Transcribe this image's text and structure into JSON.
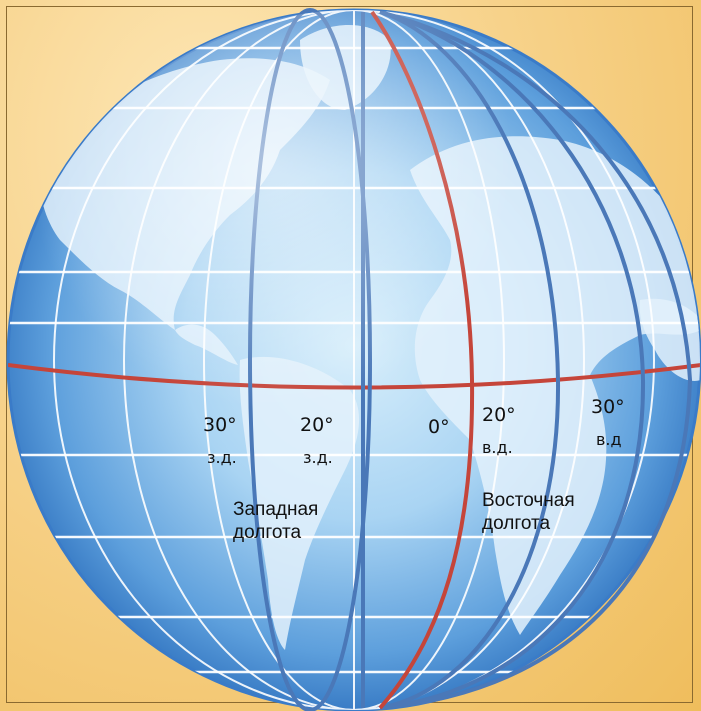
{
  "colors": {
    "background": "#f6cd78",
    "ocean_light": "#cfe9fa",
    "ocean_dark": "#2c76c2",
    "land": "#e8f4fc",
    "grid_line": "#ffffff",
    "meridian_blue": "#4a78b8",
    "prime_meridian_red": "#c5453a",
    "equator_red": "#c5453a"
  },
  "labels": {
    "w30": {
      "degree": "30°",
      "suffix": "з.д."
    },
    "w20": {
      "degree": "20°",
      "suffix": "з.д."
    },
    "zero": {
      "degree": "0°"
    },
    "e20": {
      "degree": "20°",
      "suffix": "в.д."
    },
    "e30": {
      "degree": "30°",
      "suffix": "в.д"
    },
    "west_caption": {
      "line1": "Западная",
      "line2": "долгота"
    },
    "east_caption": {
      "line1": "Восточная",
      "line2": "долгота"
    }
  }
}
